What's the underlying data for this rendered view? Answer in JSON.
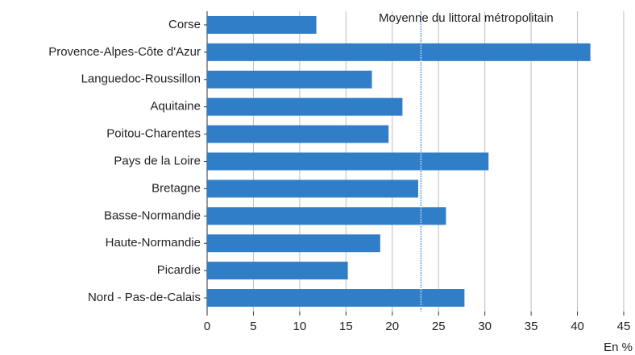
{
  "chart_data": {
    "type": "barh",
    "categories": [
      "Corse",
      "Provence-Alpes-Côte d'Azur",
      "Languedoc-Roussillon",
      "Aquitaine",
      "Poitou-Charentes",
      "Pays de la Loire",
      "Bretagne",
      "Basse-Normandie",
      "Haute-Normandie",
      "Picardie",
      "Nord - Pas-de-Calais"
    ],
    "values": [
      11.8,
      41.4,
      17.8,
      21.1,
      19.6,
      30.4,
      22.8,
      25.8,
      18.7,
      15.2,
      27.8
    ],
    "color": "#2f7ec7",
    "xlim": [
      0,
      45
    ],
    "xticks": [
      0,
      5,
      10,
      15,
      20,
      25,
      30,
      35,
      40,
      45
    ],
    "grid": true,
    "x_label": "En %",
    "reference_line": {
      "value": 23.1,
      "label": "Moyenne du littoral métropolitain",
      "color": "#8fb8e6"
    }
  }
}
